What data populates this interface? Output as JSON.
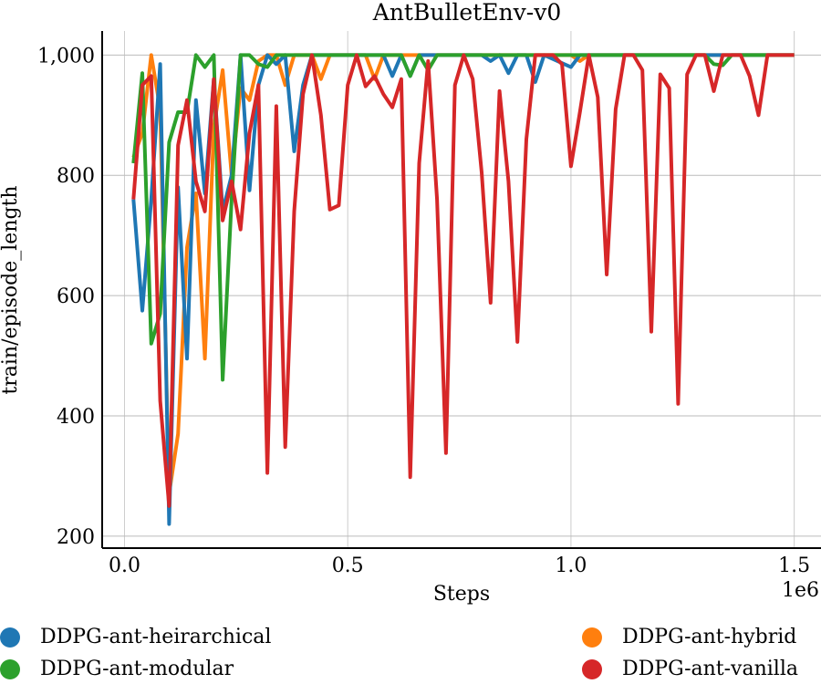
{
  "chart_data": {
    "type": "line",
    "title": "AntBulletEnv-v0",
    "xlabel": "Steps",
    "ylabel": "train/episode_length",
    "x_offset_label": "1e6",
    "xlim": [
      -0.05,
      1.56
    ],
    "ylim": [
      180,
      1040
    ],
    "x_ticks": [
      0.0,
      0.5,
      1.0,
      1.5
    ],
    "x_tick_labels": [
      "0.0",
      "0.5",
      "1.0",
      "1.5"
    ],
    "y_ticks": [
      200,
      400,
      600,
      800,
      1000
    ],
    "y_tick_labels": [
      "200",
      "400",
      "600",
      "800",
      "1,000"
    ],
    "grid": true,
    "legend_position": "bottom",
    "series": [
      {
        "name": "DDPG-ant-hybrid",
        "color": "#ff7f0e",
        "points": [
          [
            0.02,
            830
          ],
          [
            0.04,
            870
          ],
          [
            0.06,
            1000
          ],
          [
            0.08,
            910
          ],
          [
            0.1,
            270
          ],
          [
            0.12,
            370
          ],
          [
            0.14,
            680
          ],
          [
            0.16,
            770
          ],
          [
            0.18,
            495
          ],
          [
            0.2,
            880
          ],
          [
            0.22,
            975
          ],
          [
            0.24,
            800
          ],
          [
            0.26,
            945
          ],
          [
            0.28,
            925
          ],
          [
            0.3,
            990
          ],
          [
            0.32,
            1000
          ],
          [
            0.34,
            1000
          ],
          [
            0.36,
            950
          ],
          [
            0.38,
            1000
          ],
          [
            0.4,
            1000
          ],
          [
            0.42,
            1000
          ],
          [
            0.44,
            960
          ],
          [
            0.46,
            1000
          ],
          [
            0.5,
            1000
          ],
          [
            0.54,
            1000
          ],
          [
            0.56,
            960
          ],
          [
            0.58,
            1000
          ],
          [
            0.62,
            1000
          ],
          [
            0.66,
            1000
          ],
          [
            0.7,
            1000
          ],
          [
            0.8,
            1000
          ],
          [
            0.9,
            1000
          ],
          [
            1.0,
            1000
          ],
          [
            1.02,
            990
          ],
          [
            1.04,
            1000
          ],
          [
            1.1,
            1000
          ],
          [
            1.2,
            1000
          ],
          [
            1.3,
            1000
          ],
          [
            1.4,
            1000
          ],
          [
            1.5,
            1000
          ]
        ]
      },
      {
        "name": "DDPG-ant-heirarchical",
        "color": "#1f77b4",
        "points": [
          [
            0.02,
            760
          ],
          [
            0.04,
            575
          ],
          [
            0.06,
            760
          ],
          [
            0.08,
            985
          ],
          [
            0.1,
            220
          ],
          [
            0.12,
            780
          ],
          [
            0.14,
            495
          ],
          [
            0.16,
            925
          ],
          [
            0.18,
            770
          ],
          [
            0.2,
            960
          ],
          [
            0.22,
            740
          ],
          [
            0.24,
            800
          ],
          [
            0.26,
            1000
          ],
          [
            0.28,
            775
          ],
          [
            0.3,
            950
          ],
          [
            0.32,
            1000
          ],
          [
            0.34,
            985
          ],
          [
            0.36,
            1000
          ],
          [
            0.38,
            840
          ],
          [
            0.4,
            950
          ],
          [
            0.42,
            1000
          ],
          [
            0.5,
            1000
          ],
          [
            0.58,
            1000
          ],
          [
            0.6,
            965
          ],
          [
            0.62,
            1000
          ],
          [
            0.64,
            965
          ],
          [
            0.66,
            1000
          ],
          [
            0.8,
            1000
          ],
          [
            0.82,
            990
          ],
          [
            0.84,
            1000
          ],
          [
            0.86,
            970
          ],
          [
            0.88,
            1000
          ],
          [
            0.9,
            1000
          ],
          [
            0.92,
            955
          ],
          [
            0.94,
            1000
          ],
          [
            1.0,
            980
          ],
          [
            1.02,
            1000
          ],
          [
            1.5,
            1000
          ]
        ]
      },
      {
        "name": "DDPG-ant-modular",
        "color": "#2ca02c",
        "points": [
          [
            0.02,
            820
          ],
          [
            0.04,
            970
          ],
          [
            0.06,
            520
          ],
          [
            0.08,
            570
          ],
          [
            0.1,
            855
          ],
          [
            0.12,
            905
          ],
          [
            0.14,
            905
          ],
          [
            0.16,
            1000
          ],
          [
            0.18,
            980
          ],
          [
            0.2,
            1000
          ],
          [
            0.22,
            460
          ],
          [
            0.24,
            760
          ],
          [
            0.26,
            1000
          ],
          [
            0.28,
            1000
          ],
          [
            0.3,
            985
          ],
          [
            0.32,
            980
          ],
          [
            0.34,
            1000
          ],
          [
            0.36,
            1000
          ],
          [
            0.4,
            1000
          ],
          [
            0.5,
            1000
          ],
          [
            0.6,
            1000
          ],
          [
            0.62,
            1000
          ],
          [
            0.64,
            965
          ],
          [
            0.66,
            1000
          ],
          [
            0.68,
            975
          ],
          [
            0.7,
            1000
          ],
          [
            0.8,
            1000
          ],
          [
            1.0,
            1000
          ],
          [
            1.1,
            1000
          ],
          [
            1.3,
            1000
          ],
          [
            1.32,
            985
          ],
          [
            1.34,
            983
          ],
          [
            1.36,
            1000
          ],
          [
            1.5,
            1000
          ]
        ]
      },
      {
        "name": "DDPG-ant-vanilla",
        "color": "#d62728",
        "points": [
          [
            0.02,
            760
          ],
          [
            0.04,
            950
          ],
          [
            0.06,
            965
          ],
          [
            0.08,
            425
          ],
          [
            0.1,
            250
          ],
          [
            0.12,
            850
          ],
          [
            0.14,
            925
          ],
          [
            0.16,
            790
          ],
          [
            0.18,
            740
          ],
          [
            0.2,
            960
          ],
          [
            0.22,
            725
          ],
          [
            0.24,
            790
          ],
          [
            0.26,
            710
          ],
          [
            0.28,
            870
          ],
          [
            0.3,
            950
          ],
          [
            0.32,
            305
          ],
          [
            0.34,
            915
          ],
          [
            0.36,
            348
          ],
          [
            0.38,
            740
          ],
          [
            0.4,
            935
          ],
          [
            0.42,
            1000
          ],
          [
            0.44,
            900
          ],
          [
            0.46,
            743
          ],
          [
            0.48,
            750
          ],
          [
            0.5,
            950
          ],
          [
            0.52,
            1000
          ],
          [
            0.54,
            948
          ],
          [
            0.56,
            965
          ],
          [
            0.58,
            935
          ],
          [
            0.6,
            913
          ],
          [
            0.62,
            960
          ],
          [
            0.64,
            298
          ],
          [
            0.66,
            820
          ],
          [
            0.68,
            990
          ],
          [
            0.7,
            760
          ],
          [
            0.72,
            338
          ],
          [
            0.74,
            950
          ],
          [
            0.76,
            1000
          ],
          [
            0.78,
            960
          ],
          [
            0.8,
            805
          ],
          [
            0.82,
            588
          ],
          [
            0.84,
            940
          ],
          [
            0.86,
            790
          ],
          [
            0.88,
            523
          ],
          [
            0.9,
            860
          ],
          [
            0.92,
            1000
          ],
          [
            0.94,
            1000
          ],
          [
            0.96,
            1000
          ],
          [
            0.98,
            985
          ],
          [
            1.0,
            815
          ],
          [
            1.02,
            905
          ],
          [
            1.04,
            1000
          ],
          [
            1.06,
            930
          ],
          [
            1.08,
            635
          ],
          [
            1.1,
            910
          ],
          [
            1.12,
            1000
          ],
          [
            1.14,
            1000
          ],
          [
            1.16,
            975
          ],
          [
            1.18,
            540
          ],
          [
            1.2,
            968
          ],
          [
            1.22,
            945
          ],
          [
            1.24,
            420
          ],
          [
            1.26,
            968
          ],
          [
            1.28,
            1000
          ],
          [
            1.3,
            1000
          ],
          [
            1.32,
            940
          ],
          [
            1.34,
            1000
          ],
          [
            1.36,
            1000
          ],
          [
            1.38,
            1000
          ],
          [
            1.4,
            965
          ],
          [
            1.42,
            900
          ],
          [
            1.44,
            1000
          ],
          [
            1.46,
            1000
          ],
          [
            1.48,
            1000
          ],
          [
            1.5,
            1000
          ]
        ]
      }
    ],
    "legend_items": [
      {
        "name": "DDPG-ant-heirarchical",
        "color": "#1f77b4"
      },
      {
        "name": "DDPG-ant-hybrid",
        "color": "#ff7f0e"
      },
      {
        "name": "DDPG-ant-modular",
        "color": "#2ca02c"
      },
      {
        "name": "DDPG-ant-vanilla",
        "color": "#d62728"
      }
    ]
  }
}
